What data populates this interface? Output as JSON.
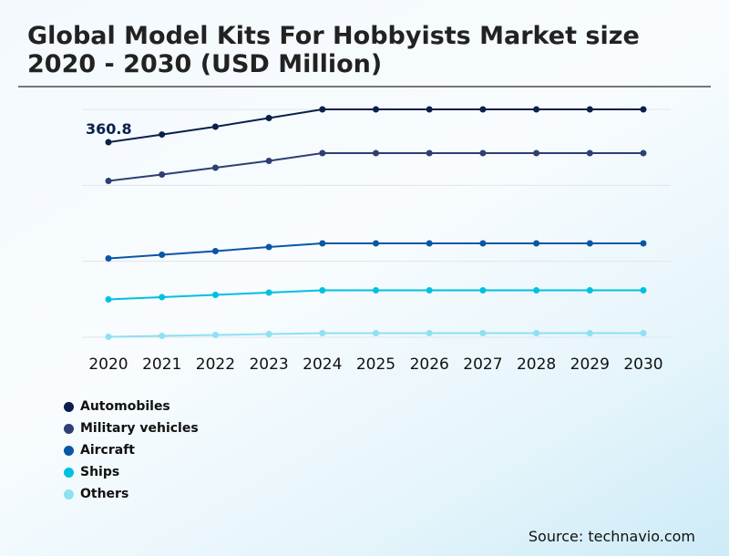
{
  "title": "Global Model Kits For Hobbyists Market size 2020 - 2030 (USD Million)",
  "source": "Source: technavio.com",
  "chart_data": {
    "type": "line",
    "title": "Global Model Kits For Hobbyists Market size 2020 - 2030 (USD Million)",
    "categories": [
      "2020",
      "2021",
      "2022",
      "2023",
      "2024",
      "2025",
      "2026",
      "2027",
      "2028",
      "2029",
      "2030"
    ],
    "ylim": [
      0,
      421.5
    ],
    "grid": true,
    "legend_position": "bottom-left",
    "annotation": "360.8",
    "series": [
      {
        "name": "Automobiles",
        "color": "#0b1f4b",
        "values": [
          360.8,
          375,
          389.5,
          405.5,
          421.5,
          421.5,
          421.5,
          421.5,
          421.5,
          421.5,
          421.5
        ]
      },
      {
        "name": "Military vehicles",
        "color": "#2e3f73",
        "values": [
          289.2,
          301,
          313.6,
          326.3,
          340.6,
          340.6,
          340.6,
          340.6,
          340.6,
          340.6,
          340.6
        ]
      },
      {
        "name": "Aircraft",
        "color": "#0a56a6",
        "values": [
          145.8,
          152.6,
          159.3,
          166.9,
          173.7,
          173.7,
          173.7,
          173.7,
          173.7,
          173.7,
          173.7
        ]
      },
      {
        "name": "Ships",
        "color": "#00c0e0",
        "values": [
          70,
          74.2,
          78.4,
          82.6,
          86.8,
          86.8,
          86.8,
          86.8,
          86.8,
          86.8,
          86.8
        ]
      },
      {
        "name": "Others",
        "color": "#8ee0f2",
        "values": [
          0.8,
          2.5,
          4.2,
          5.9,
          7.6,
          7.6,
          7.6,
          7.6,
          7.6,
          7.6,
          7.6
        ]
      }
    ]
  }
}
